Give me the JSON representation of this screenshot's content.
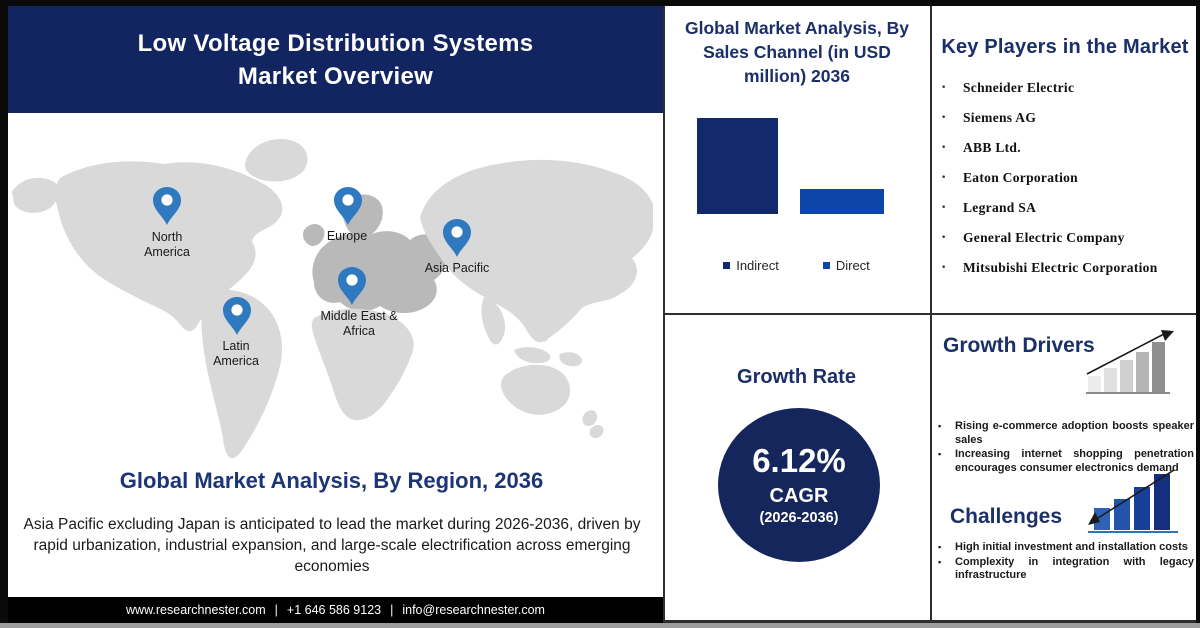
{
  "chart_data": {
    "type": "bar",
    "title": "Global Market Analysis, By Sales Channel (in USD million) 2036",
    "categories": [
      "Indirect",
      "Direct"
    ],
    "values": [
      100,
      26
    ],
    "value_note": "bars carry no printed numbers; heights are relative (Indirect is roughly 4x Direct)",
    "colors": [
      "#122a6d",
      "#0d45a8"
    ],
    "legend": [
      "Indirect",
      "Direct"
    ],
    "legend_position": "bottom",
    "grid": false,
    "axes_labeled": false
  },
  "header": {
    "title_line1": "Low Voltage Distribution Systems",
    "title_line2": "Market Overview"
  },
  "map": {
    "heading": "Global Market Analysis, By Region, 2036",
    "description": "Asia Pacific excluding Japan is anticipated to lead the market during 2026-2036, driven by rapid urbanization, industrial expansion, and large-scale electrification across emerging economies",
    "regions": [
      {
        "name": "North America"
      },
      {
        "name": "Latin America"
      },
      {
        "name": "Europe"
      },
      {
        "name": "Middle East & Africa"
      },
      {
        "name": "Asia Pacific"
      }
    ],
    "pin_color": "#2e79c0"
  },
  "growth_rate": {
    "heading": "Growth Rate",
    "value": "6.12%",
    "label": "CAGR",
    "period": "(2026-2036)",
    "circle_color": "#15265c"
  },
  "key_players": {
    "heading": "Key Players in the Market",
    "items": [
      "Schneider Electric",
      "Siemens AG",
      "ABB Ltd.",
      "Eaton Corporation",
      "Legrand SA",
      "General Electric Company",
      "Mitsubishi Electric Corporation"
    ]
  },
  "growth_drivers": {
    "heading": "Growth Drivers",
    "items": [
      "Rising e-commerce adoption boosts speaker sales",
      "Increasing internet shopping penetration encourages consumer electronics demand"
    ]
  },
  "challenges": {
    "heading": "Challenges",
    "items": [
      "High initial investment and installation costs",
      "Complexity in integration with legacy infrastructure"
    ]
  },
  "footer": {
    "website": "www.researchnester.com",
    "phone": "+1 646 586 9123",
    "email": "info@researchnester.com",
    "separator": "|"
  },
  "colors": {
    "banner_navy": "#122560",
    "heading_blue": "#1b2f68",
    "bar_indirect": "#122a6d",
    "bar_direct": "#0d45a8",
    "pin_blue": "#2e79c0",
    "circle_navy": "#15265c",
    "map_land": "#d9d9d9",
    "map_europe": "#b9b9b9"
  }
}
